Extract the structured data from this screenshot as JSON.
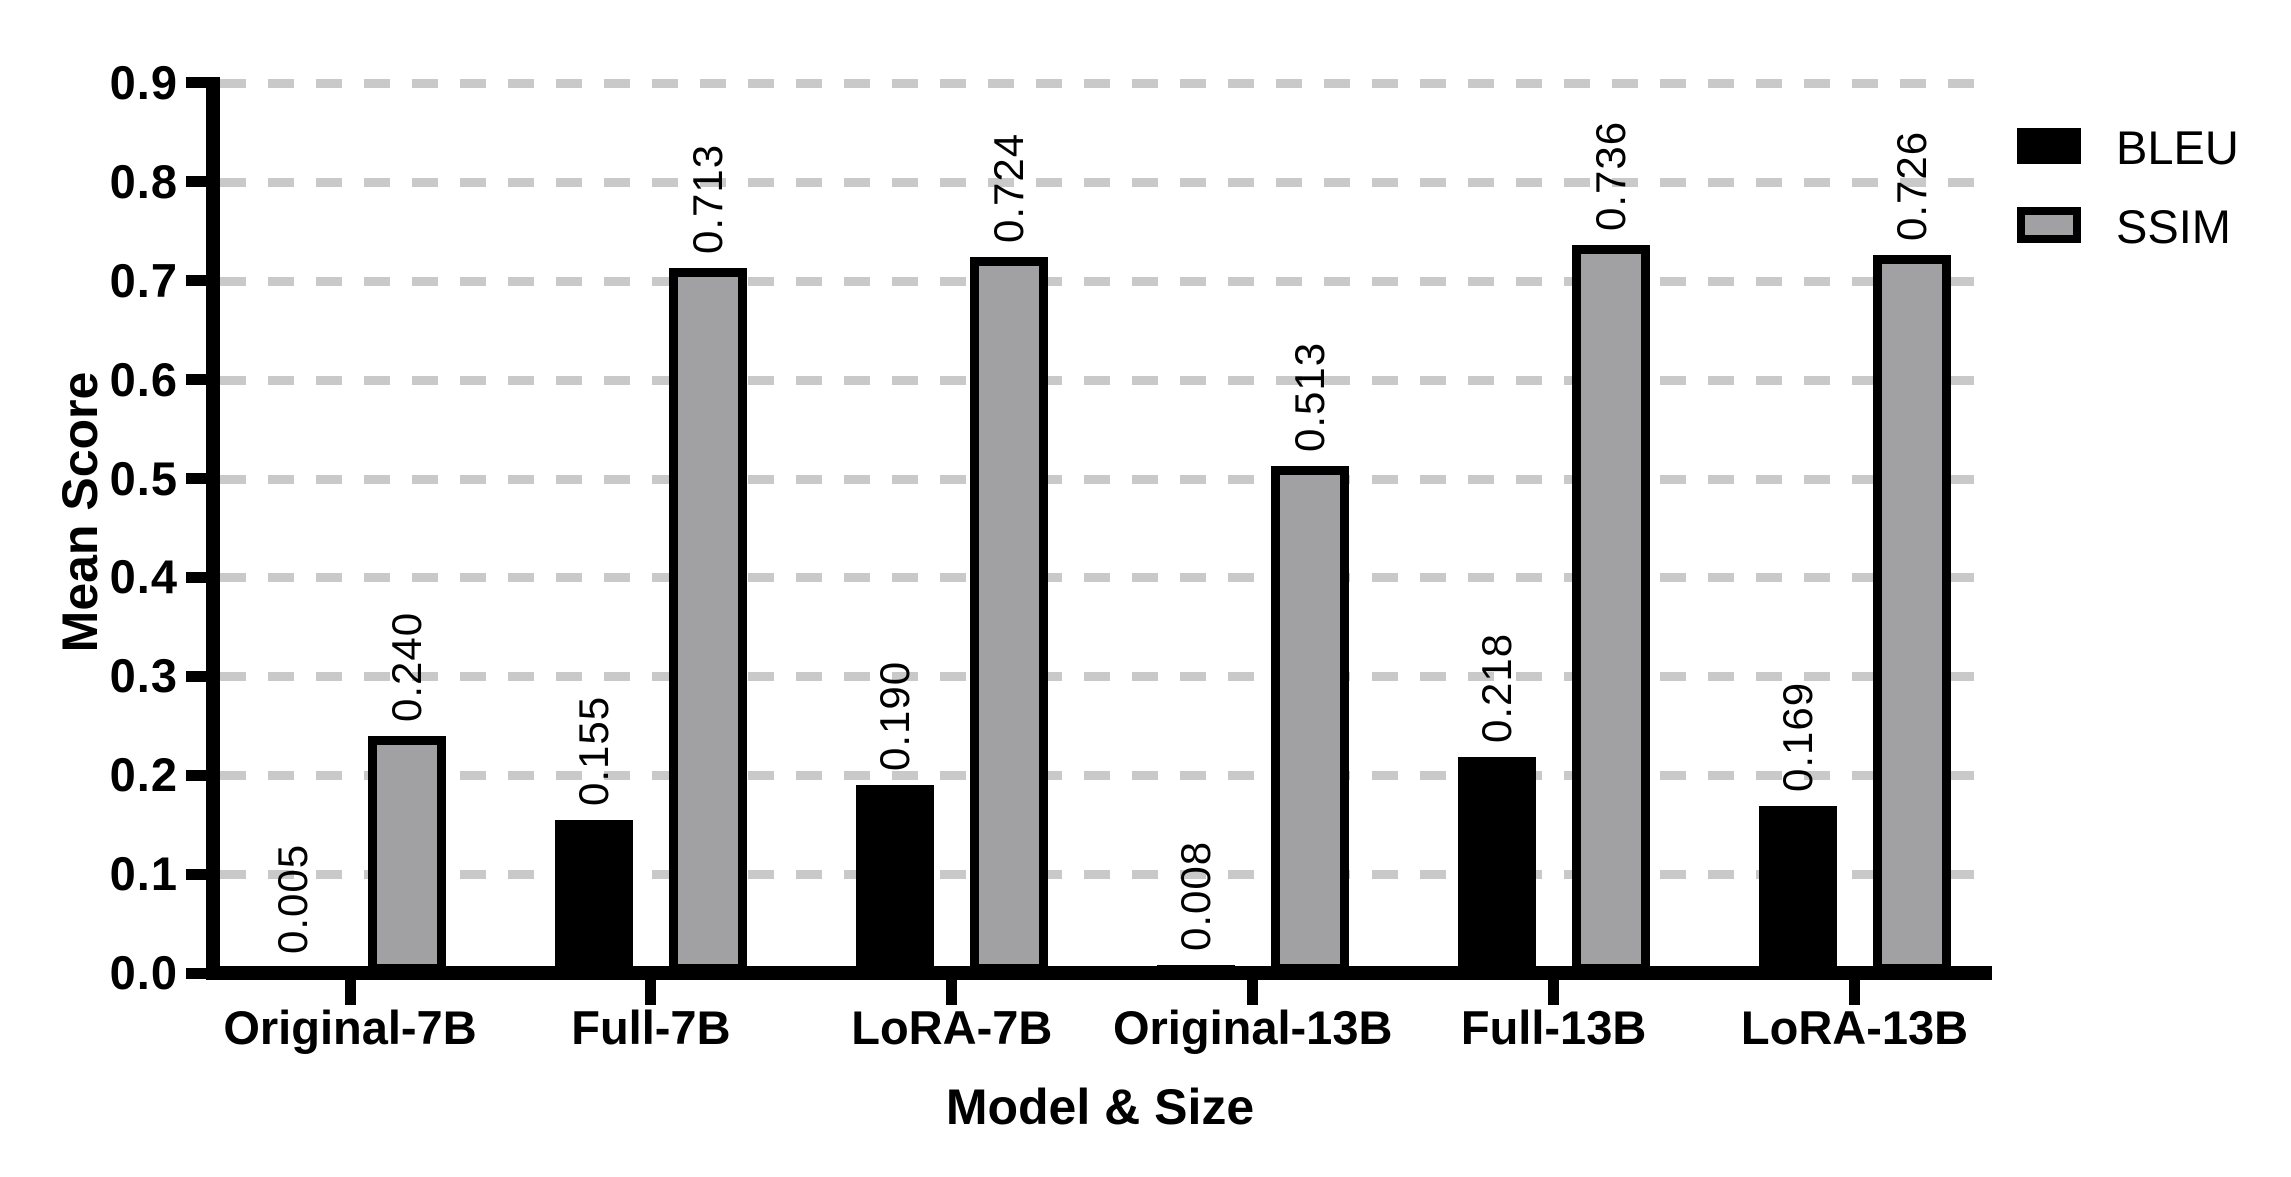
{
  "figure": {
    "background": "#ffffff"
  },
  "chart_data": {
    "type": "bar",
    "title": "",
    "xlabel": "Model & Size",
    "ylabel": "Mean Score",
    "categories": [
      "Original-7B",
      "Full-7B",
      "LoRA-7B",
      "Original-13B",
      "Full-13B",
      "LoRA-13B"
    ],
    "series": [
      {
        "name": "BLEU",
        "color": "#000000",
        "values": [
          0.005,
          0.155,
          0.19,
          0.008,
          0.218,
          0.169
        ],
        "value_labels": [
          "0.005",
          "0.155",
          "0.190",
          "0.008",
          "0.218",
          "0.169"
        ]
      },
      {
        "name": "SSIM",
        "color": "#a1a1a4",
        "border_color": "#000000",
        "values": [
          0.24,
          0.713,
          0.724,
          0.513,
          0.736,
          0.726
        ],
        "value_labels": [
          "0.240",
          "0.713",
          "0.724",
          "0.513",
          "0.736",
          "0.726"
        ]
      }
    ],
    "ylim": [
      0.0,
      0.9
    ],
    "ytick_step": 0.1,
    "ytick_labels": [
      "0.0",
      "0.1",
      "0.2",
      "0.3",
      "0.4",
      "0.5",
      "0.6",
      "0.7",
      "0.8",
      "0.9"
    ],
    "grid": "horizontal dashed",
    "grid_color": "#c9c9c9",
    "axis_color": "#000000",
    "value_label_rotation_deg": 90,
    "legend_position": "outside top-right"
  }
}
